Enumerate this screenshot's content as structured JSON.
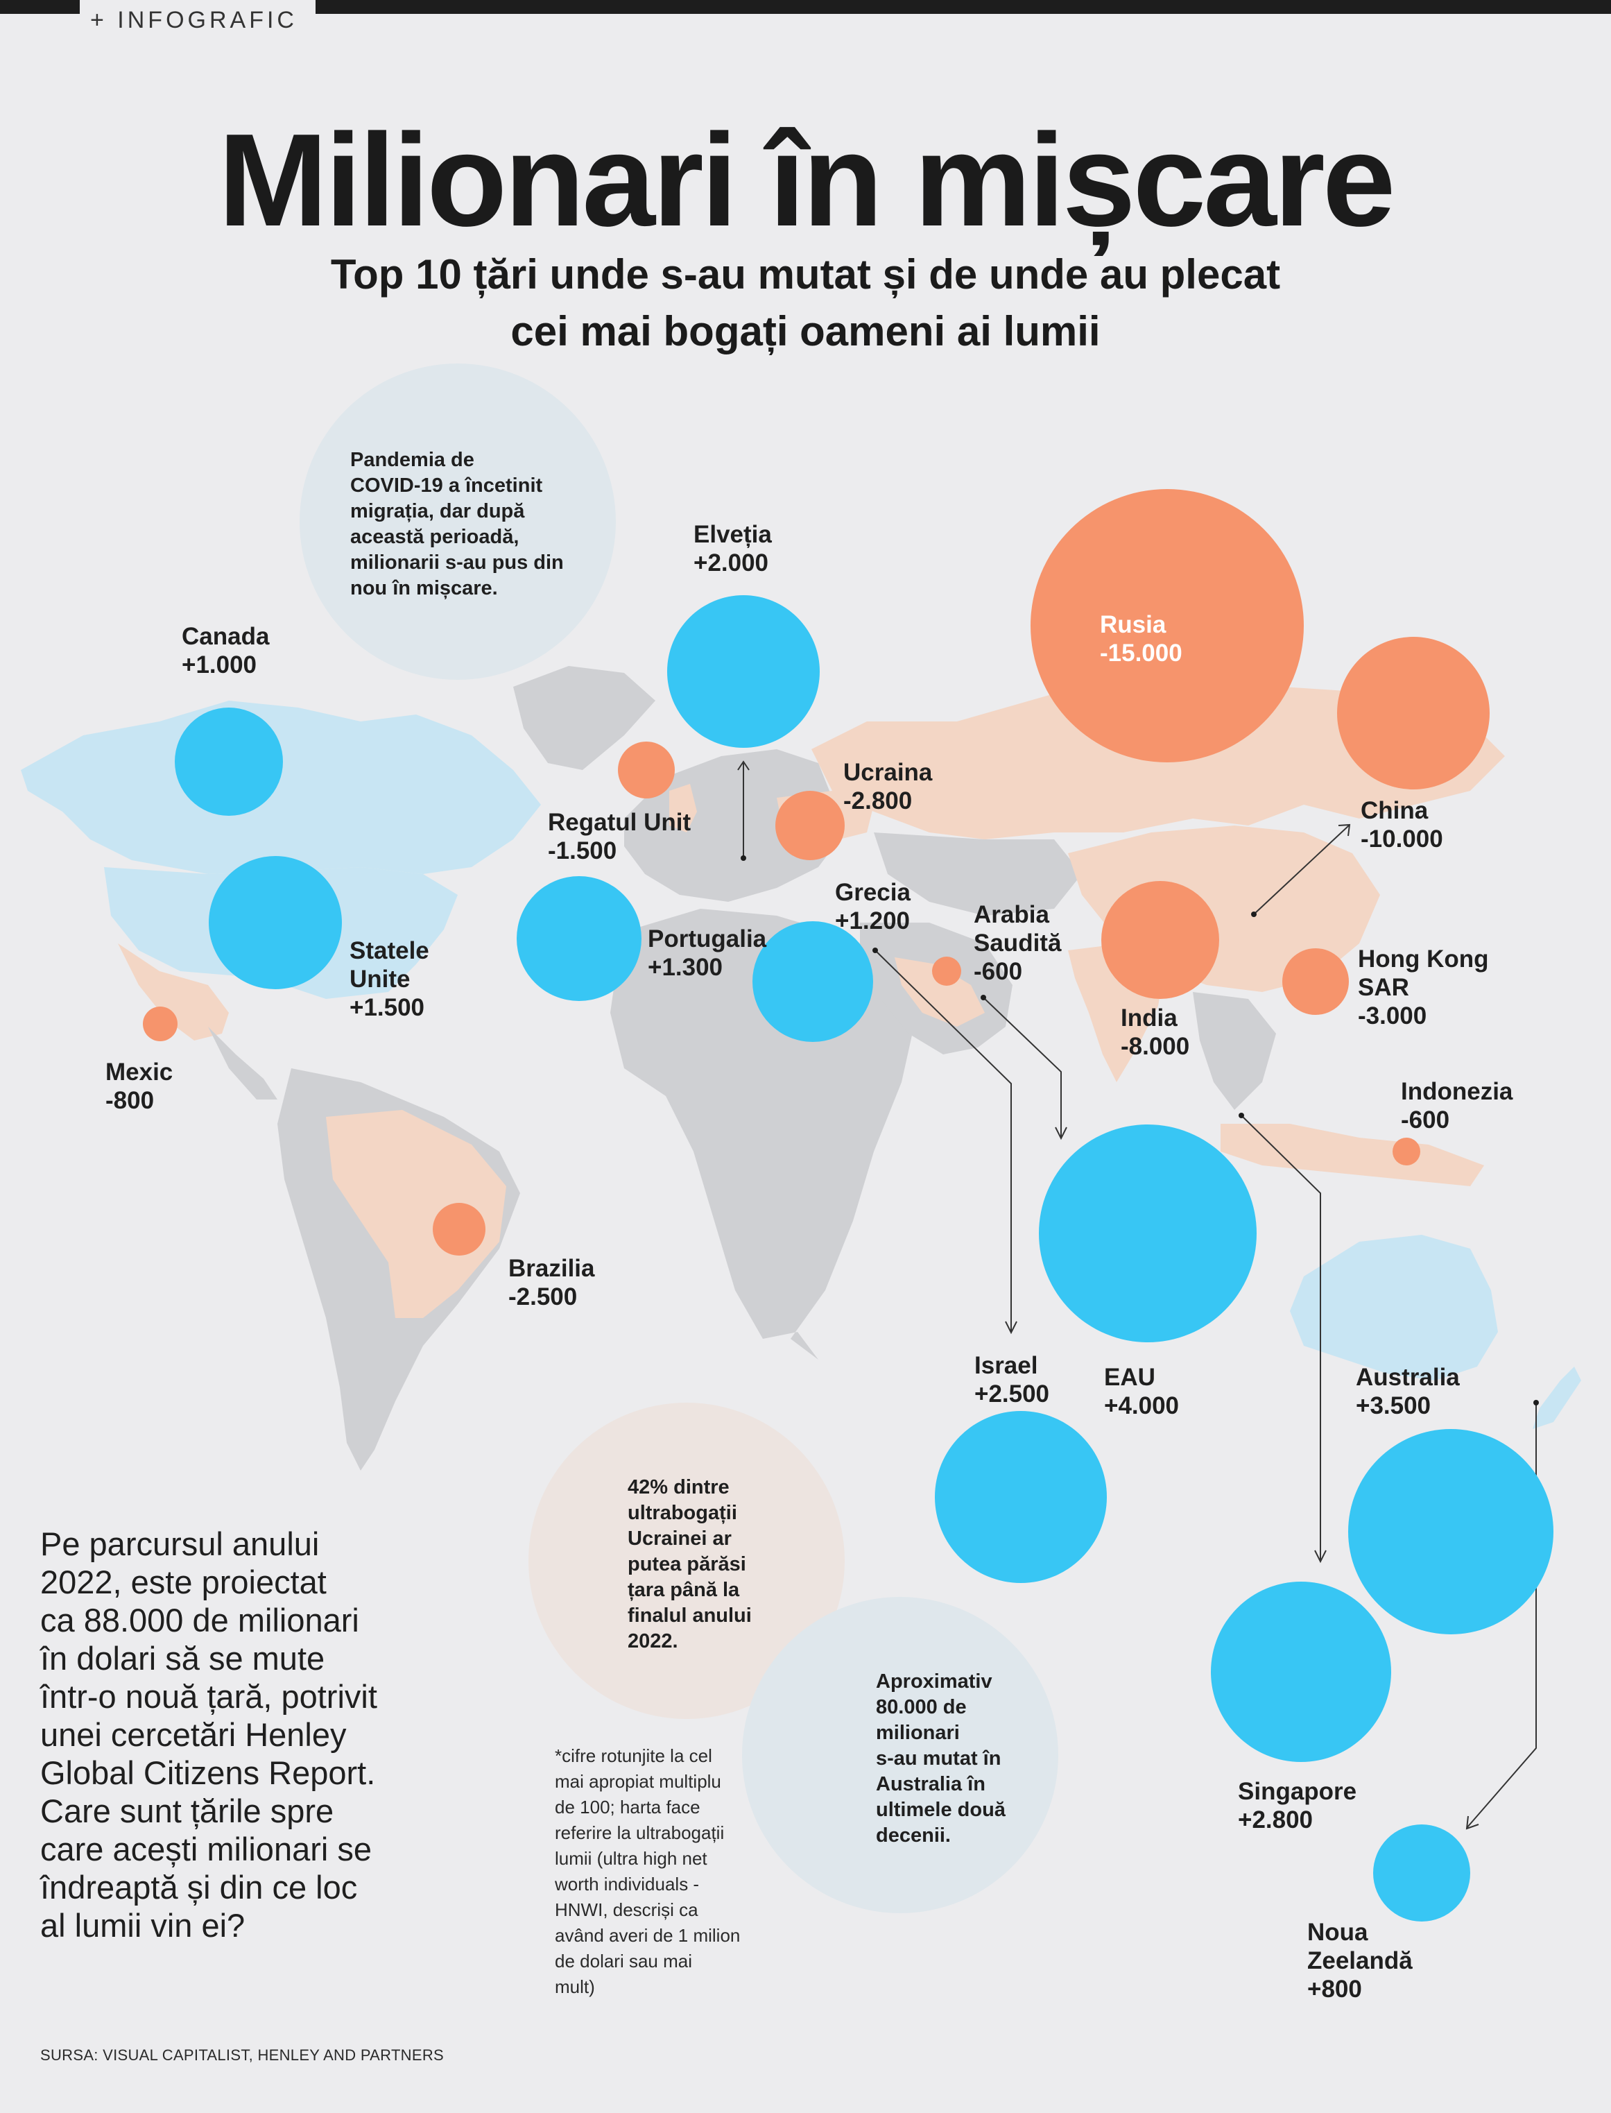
{
  "header": {
    "kicker": "+ INFOGRAFIC"
  },
  "title": "Milionari în mișcare",
  "subtitle": "Top 10 țări unde s-au mutat și de unde au plecat\ncei mai bogați oameni ai lumii",
  "colors": {
    "gain": "#38c6f4",
    "loss": "#f6946c",
    "gain_land": "#c8e5f3",
    "loss_land": "#f3d6c5",
    "land": "#cfd0d3",
    "background": "#ececee"
  },
  "countries": [
    {
      "name": "Canada",
      "value": "+1.000"
    },
    {
      "name": "Statele\nUnite",
      "value": "+1.500"
    },
    {
      "name": "Mexic",
      "value": "-800"
    },
    {
      "name": "Brazilia",
      "value": "-2.500"
    },
    {
      "name": "Regatul Unit",
      "value": "-1.500"
    },
    {
      "name": "Elveția",
      "value": "+2.000"
    },
    {
      "name": "Portugalia",
      "value": "+1.300"
    },
    {
      "name": "Grecia",
      "value": "+1.200"
    },
    {
      "name": "Ucraina",
      "value": "-2.800"
    },
    {
      "name": "Rusia",
      "value": "-15.000"
    },
    {
      "name": "China",
      "value": "-10.000"
    },
    {
      "name": "Arabia\nSaudită",
      "value": "-600"
    },
    {
      "name": "India",
      "value": "-8.000"
    },
    {
      "name": "Hong Kong\nSAR",
      "value": "-3.000"
    },
    {
      "name": "Indonezia",
      "value": "-600"
    },
    {
      "name": "Israel",
      "value": "+2.500"
    },
    {
      "name": "EAU",
      "value": "+4.000"
    },
    {
      "name": "Australia",
      "value": "+3.500"
    },
    {
      "name": "Singapore",
      "value": "+2.800"
    },
    {
      "name": "Noua\nZeelandă",
      "value": "+800"
    }
  ],
  "notes": {
    "covid": "Pandemia de\nCOVID-19 a încetinit\nmigrația, dar după\naceastă perioadă,\nmilionarii s-au pus din\nnou în mișcare.",
    "ukraine": "42% dintre\nultrabogații\nUcrainei ar\nputea părăsi\nțara până la\nfinalul anului\n2022.",
    "australia": "Aproximativ\n80.000 de\nmilionari\ns-au mutat în\nAustralia în\nultimele două\ndecenii."
  },
  "intro": "Pe parcursul anului\n2022, este proiectat\nca 88.000 de milionari\nîn dolari să se mute\nîntr-o nouă țară, potrivit\nunei cercetări Henley\nGlobal Citizens Report.\nCare sunt țările spre\ncare acești milionari se\nîndreaptă și din ce loc\nal lumii vin ei?",
  "footnote": "*cifre rotunjite la cel\nmai apropiat multiplu\nde 100; harta face\nreferire la ultrabogații\nlumii (ultra high net\nworth individuals -\nHNWI, descriși ca\navând averi de 1 milion\nde dolari sau mai\nmult)",
  "source": "SURSA: VISUAL CAPITALIST, HENLEY AND PARTNERS"
}
